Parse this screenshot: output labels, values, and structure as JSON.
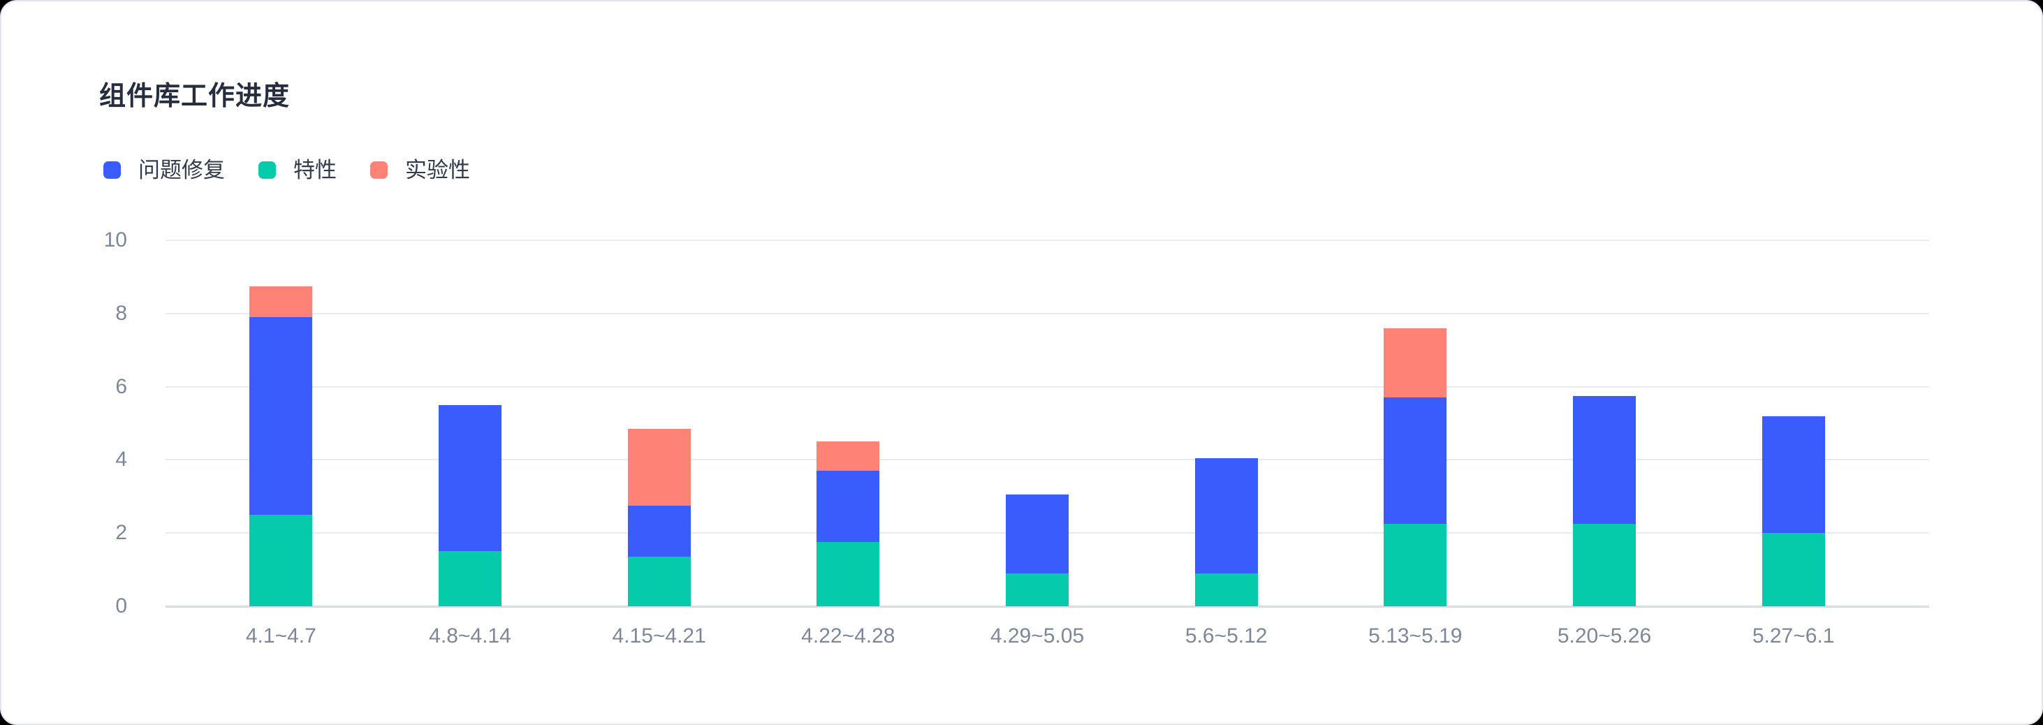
{
  "card": {
    "background": "#FFFFFF",
    "page_background": "#000000",
    "border_color": "#E3E6F0"
  },
  "chart": {
    "title": "组件库工作进度"
  },
  "chart_data": {
    "type": "bar",
    "stacked": true,
    "title": "组件库工作进度",
    "categories": [
      "4.1~4.7",
      "4.8~4.14",
      "4.15~4.21",
      "4.22~4.28",
      "4.29~5.05",
      "5.6~5.12",
      "5.13~5.19",
      "5.20~5.26",
      "5.27~6.1"
    ],
    "series": [
      {
        "key": "bugfix",
        "name": "问题修复",
        "color": "#3A5CFD",
        "values": [
          5.4,
          4.0,
          1.4,
          1.95,
          2.15,
          3.15,
          3.45,
          3.5,
          3.2
        ]
      },
      {
        "key": "feature",
        "name": "特性",
        "color": "#06CBAA",
        "values": [
          2.5,
          1.5,
          1.35,
          1.75,
          0.9,
          0.9,
          2.25,
          2.25,
          2.0
        ]
      },
      {
        "key": "experimental",
        "name": "实验性",
        "color": "#FF8277",
        "values": [
          0.85,
          0,
          2.1,
          0.8,
          0,
          0,
          1.9,
          0,
          0
        ]
      }
    ],
    "stack_order_bottom_to_top": [
      "特性",
      "问题修复",
      "实验性"
    ],
    "y_ticks": [
      0,
      2,
      4,
      6,
      8,
      10
    ],
    "ylim": [
      0,
      10
    ],
    "grid": true,
    "legend_position": "top-left",
    "xlabel": "",
    "ylabel": ""
  }
}
